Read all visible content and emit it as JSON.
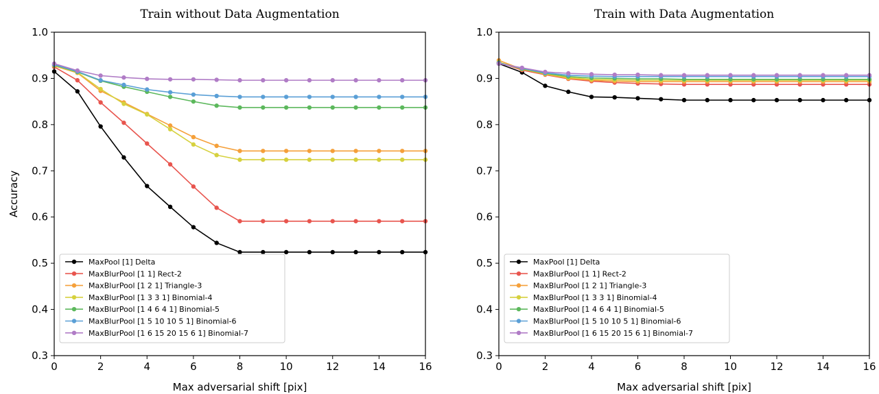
{
  "chart_data": [
    {
      "type": "line",
      "title": "Train without Data Augmentation",
      "xlabel": "Max adversarial shift [pix]",
      "ylabel": "Accuracy",
      "xlim": [
        0,
        16
      ],
      "ylim": [
        0.3,
        1.0
      ],
      "xticks": [
        "0",
        "2",
        "4",
        "6",
        "8",
        "10",
        "12",
        "14",
        "16"
      ],
      "yticks": [
        "0.3",
        "0.4",
        "0.5",
        "0.6",
        "0.7",
        "0.8",
        "0.9",
        "1.0"
      ],
      "grid": false,
      "legend_position": "lower-left",
      "x": [
        0,
        1,
        2,
        3,
        4,
        5,
        6,
        7,
        8,
        9,
        10,
        11,
        12,
        13,
        14,
        15,
        16
      ],
      "series": [
        {
          "name": "MaxPool [1] Delta",
          "color": "#000000",
          "values": [
            0.915,
            0.872,
            0.796,
            0.729,
            0.667,
            0.622,
            0.578,
            0.544,
            0.524,
            0.524,
            0.524,
            0.524,
            0.524,
            0.524,
            0.524,
            0.524,
            0.524
          ]
        },
        {
          "name": "MaxBlurPool [1 1] Rect-2",
          "color": "#e8554e",
          "values": [
            0.925,
            0.896,
            0.848,
            0.804,
            0.759,
            0.714,
            0.666,
            0.62,
            0.591,
            0.591,
            0.591,
            0.591,
            0.591,
            0.591,
            0.591,
            0.591,
            0.591
          ]
        },
        {
          "name": "MaxBlurPool [1 2 1] Triangle-3",
          "color": "#f5a03a",
          "values": [
            0.927,
            0.912,
            0.873,
            0.848,
            0.823,
            0.798,
            0.773,
            0.754,
            0.743,
            0.743,
            0.743,
            0.743,
            0.743,
            0.743,
            0.743,
            0.743,
            0.743
          ]
        },
        {
          "name": "MaxBlurPool [1 3 3 1] Binomial-4",
          "color": "#d6d13e",
          "values": [
            0.928,
            0.913,
            0.877,
            0.845,
            0.822,
            0.79,
            0.757,
            0.734,
            0.724,
            0.724,
            0.724,
            0.724,
            0.724,
            0.724,
            0.724,
            0.724,
            0.724
          ]
        },
        {
          "name": "MaxBlurPool [1 4 6 4 1] Binomial-5",
          "color": "#5cb85c",
          "values": [
            0.929,
            0.914,
            0.895,
            0.882,
            0.871,
            0.86,
            0.85,
            0.841,
            0.837,
            0.837,
            0.837,
            0.837,
            0.837,
            0.837,
            0.837,
            0.837,
            0.837
          ]
        },
        {
          "name": "MaxBlurPool [1 5 10 10 5 1] Binomial-6",
          "color": "#5a9fd6",
          "values": [
            0.93,
            0.915,
            0.896,
            0.886,
            0.876,
            0.87,
            0.865,
            0.862,
            0.86,
            0.86,
            0.86,
            0.86,
            0.86,
            0.86,
            0.86,
            0.86,
            0.86
          ]
        },
        {
          "name": "MaxBlurPool [1 6 15 20 15 6 1] Binomial-7",
          "color": "#b07cc6",
          "values": [
            0.932,
            0.917,
            0.906,
            0.902,
            0.899,
            0.898,
            0.898,
            0.897,
            0.896,
            0.896,
            0.896,
            0.896,
            0.896,
            0.896,
            0.896,
            0.896,
            0.896
          ]
        }
      ]
    },
    {
      "type": "line",
      "title": "Train with Data Augmentation",
      "xlabel": "Max adversarial shift [pix]",
      "ylabel": "",
      "xlim": [
        0,
        16
      ],
      "ylim": [
        0.3,
        1.0
      ],
      "xticks": [
        "0",
        "2",
        "4",
        "6",
        "8",
        "10",
        "12",
        "14",
        "16"
      ],
      "yticks": [
        "0.3",
        "0.4",
        "0.5",
        "0.6",
        "0.7",
        "0.8",
        "0.9",
        "1.0"
      ],
      "grid": false,
      "legend_position": "lower-left",
      "x": [
        0,
        1,
        2,
        3,
        4,
        5,
        6,
        7,
        8,
        9,
        10,
        11,
        12,
        13,
        14,
        15,
        16
      ],
      "series": [
        {
          "name": "MaxPool [1] Delta",
          "color": "#000000",
          "values": [
            0.932,
            0.913,
            0.884,
            0.871,
            0.86,
            0.859,
            0.857,
            0.855,
            0.853,
            0.853,
            0.853,
            0.853,
            0.853,
            0.853,
            0.853,
            0.853,
            0.853
          ]
        },
        {
          "name": "MaxBlurPool [1 1] Rect-2",
          "color": "#e8554e",
          "values": [
            0.935,
            0.918,
            0.908,
            0.899,
            0.894,
            0.891,
            0.889,
            0.888,
            0.887,
            0.887,
            0.887,
            0.887,
            0.887,
            0.887,
            0.887,
            0.887,
            0.887
          ]
        },
        {
          "name": "MaxBlurPool [1 2 1] Triangle-3",
          "color": "#f5a03a",
          "values": [
            0.939,
            0.92,
            0.909,
            0.9,
            0.896,
            0.894,
            0.893,
            0.893,
            0.893,
            0.893,
            0.893,
            0.893,
            0.893,
            0.893,
            0.893,
            0.893,
            0.893
          ]
        },
        {
          "name": "MaxBlurPool [1 3 3 1] Binomial-4",
          "color": "#d6d13e",
          "values": [
            0.935,
            0.92,
            0.91,
            0.902,
            0.898,
            0.897,
            0.896,
            0.896,
            0.896,
            0.896,
            0.896,
            0.896,
            0.896,
            0.896,
            0.896,
            0.896,
            0.896
          ]
        },
        {
          "name": "MaxBlurPool [1 4 6 4 1] Binomial-5",
          "color": "#5cb85c",
          "values": [
            0.934,
            0.921,
            0.911,
            0.904,
            0.901,
            0.9,
            0.899,
            0.899,
            0.898,
            0.898,
            0.898,
            0.898,
            0.898,
            0.898,
            0.898,
            0.898,
            0.898
          ]
        },
        {
          "name": "MaxBlurPool [1 5 10 10 5 1] Binomial-6",
          "color": "#5a9fd6",
          "values": [
            0.933,
            0.922,
            0.912,
            0.907,
            0.905,
            0.904,
            0.904,
            0.904,
            0.904,
            0.904,
            0.904,
            0.904,
            0.904,
            0.904,
            0.904,
            0.904,
            0.904
          ]
        },
        {
          "name": "MaxBlurPool [1 6 15 20 15 6 1] Binomial-7",
          "color": "#b07cc6",
          "values": [
            0.932,
            0.923,
            0.914,
            0.911,
            0.909,
            0.908,
            0.908,
            0.907,
            0.907,
            0.907,
            0.907,
            0.907,
            0.907,
            0.907,
            0.907,
            0.907,
            0.907
          ]
        }
      ]
    }
  ]
}
